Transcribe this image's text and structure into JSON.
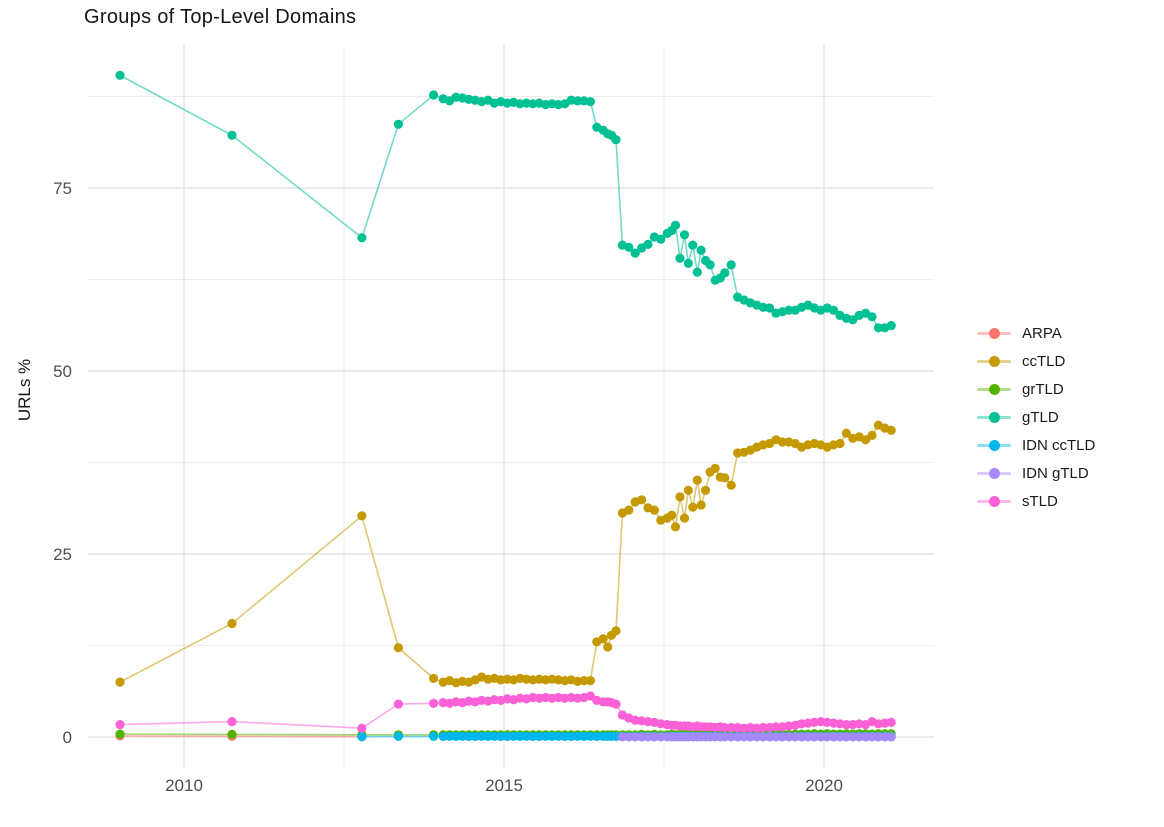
{
  "chart_data": {
    "type": "line",
    "title": "Groups of Top-Level Domains",
    "xlabel": "",
    "ylabel": "URLs %",
    "legend_position": "right",
    "grid": true,
    "xlim": [
      2008.5,
      2021.7
    ],
    "ylim": [
      -4.5,
      94.5
    ],
    "x_ticks": [
      2010,
      2015,
      2020
    ],
    "y_ticks": [
      0,
      25,
      50,
      75
    ],
    "x_minor": [
      2012.5,
      2017.5
    ],
    "y_minor": [
      12.5,
      37.5,
      62.5,
      87.5
    ],
    "x": [
      2009,
      2010.75,
      2012.78,
      2013.35,
      2013.9,
      2014.05,
      2014.15,
      2014.25,
      2014.35,
      2014.45,
      2014.55,
      2014.65,
      2014.75,
      2014.85,
      2014.95,
      2015.05,
      2015.15,
      2015.25,
      2015.35,
      2015.45,
      2015.55,
      2015.65,
      2015.75,
      2015.85,
      2015.95,
      2016.05,
      2016.15,
      2016.25,
      2016.35,
      2016.45,
      2016.55,
      2016.62,
      2016.68,
      2016.75,
      2016.85,
      2016.95,
      2017.05,
      2017.15,
      2017.25,
      2017.35,
      2017.45,
      2017.55,
      2017.62,
      2017.68,
      2017.75,
      2017.82,
      2017.88,
      2017.95,
      2018.02,
      2018.08,
      2018.15,
      2018.22,
      2018.3,
      2018.38,
      2018.45,
      2018.55,
      2018.65,
      2018.75,
      2018.85,
      2018.95,
      2019.05,
      2019.15,
      2019.25,
      2019.35,
      2019.45,
      2019.55,
      2019.65,
      2019.75,
      2019.85,
      2019.95,
      2020.05,
      2020.15,
      2020.25,
      2020.35,
      2020.45,
      2020.55,
      2020.65,
      2020.75,
      2020.85,
      2020.95,
      2021.05
    ],
    "series": [
      {
        "name": "ARPA",
        "color": "#F8766D",
        "values": [
          0.15,
          0.1,
          0.05,
          null,
          null,
          null,
          null,
          null,
          null,
          null,
          null,
          null,
          null,
          null,
          null,
          null,
          null,
          null,
          null,
          null,
          null,
          null,
          null,
          null,
          null,
          null,
          null,
          null,
          null,
          null,
          null,
          null,
          null,
          null,
          null,
          null,
          null,
          null,
          null,
          null,
          null,
          null,
          null,
          null,
          null,
          null,
          null,
          null,
          null,
          null,
          null,
          null,
          null,
          null,
          null,
          null,
          null,
          null,
          null,
          null,
          null,
          null,
          null,
          null,
          null,
          null,
          null,
          null,
          null,
          null,
          null,
          null,
          null,
          null,
          null,
          null,
          null,
          null,
          null,
          null,
          null
        ]
      },
      {
        "name": "ccTLD",
        "color": "#C49A00",
        "values": [
          7.5,
          15.5,
          30.2,
          12.2,
          8.0,
          7.5,
          7.7,
          7.4,
          7.6,
          7.5,
          7.8,
          8.2,
          7.9,
          8.0,
          7.8,
          7.9,
          7.8,
          8.0,
          7.9,
          7.8,
          7.9,
          7.8,
          7.9,
          7.8,
          7.7,
          7.8,
          7.6,
          7.7,
          7.7,
          13.0,
          13.4,
          12.3,
          13.9,
          14.5,
          30.6,
          31.0,
          32.1,
          32.4,
          31.3,
          31.0,
          29.6,
          29.9,
          30.3,
          28.7,
          32.8,
          29.9,
          33.7,
          31.4,
          35.1,
          31.7,
          33.7,
          36.2,
          36.7,
          35.5,
          35.4,
          34.4,
          38.8,
          38.9,
          39.2,
          39.6,
          39.9,
          40.1,
          40.6,
          40.3,
          40.3,
          40.1,
          39.6,
          39.9,
          40.1,
          39.9,
          39.6,
          39.9,
          40.1,
          41.5,
          40.8,
          41.0,
          40.6,
          41.2,
          42.6,
          42.2,
          41.9
        ]
      },
      {
        "name": "grTLD",
        "color": "#53B400",
        "values": [
          0.4,
          0.35,
          0.3,
          0.3,
          0.3,
          0.3,
          0.3,
          0.3,
          0.3,
          0.3,
          0.3,
          0.3,
          0.3,
          0.3,
          0.3,
          0.3,
          0.3,
          0.3,
          0.3,
          0.3,
          0.3,
          0.3,
          0.3,
          0.3,
          0.3,
          0.3,
          0.3,
          0.3,
          0.3,
          0.3,
          0.3,
          0.3,
          0.3,
          0.3,
          0.3,
          0.3,
          0.3,
          0.35,
          0.3,
          0.35,
          0.3,
          0.3,
          0.35,
          0.3,
          0.35,
          0.3,
          0.35,
          0.3,
          0.35,
          0.35,
          0.3,
          0.35,
          0.3,
          0.35,
          0.35,
          0.3,
          0.35,
          0.35,
          0.4,
          0.35,
          0.4,
          0.35,
          0.4,
          0.4,
          0.35,
          0.4,
          0.4,
          0.4,
          0.45,
          0.4,
          0.45,
          0.4,
          0.4,
          0.45,
          0.4,
          0.45,
          0.45,
          0.4,
          0.45,
          0.45,
          0.45
        ]
      },
      {
        "name": "gTLD",
        "color": "#00C094",
        "values": [
          90.4,
          82.2,
          68.2,
          83.7,
          87.7,
          87.2,
          86.9,
          87.4,
          87.3,
          87.1,
          87.0,
          86.8,
          87.0,
          86.6,
          86.8,
          86.6,
          86.7,
          86.5,
          86.6,
          86.5,
          86.6,
          86.4,
          86.5,
          86.4,
          86.5,
          87.0,
          86.9,
          86.9,
          86.8,
          83.3,
          82.9,
          82.4,
          82.2,
          81.6,
          67.2,
          66.9,
          66.1,
          66.8,
          67.3,
          68.3,
          68.0,
          68.8,
          69.2,
          69.9,
          65.4,
          68.6,
          64.7,
          67.2,
          63.5,
          66.5,
          65.1,
          64.5,
          62.4,
          62.7,
          63.4,
          64.5,
          60.1,
          59.7,
          59.3,
          59.0,
          58.7,
          58.6,
          57.9,
          58.1,
          58.3,
          58.3,
          58.7,
          59.0,
          58.6,
          58.3,
          58.6,
          58.3,
          57.6,
          57.2,
          57.0,
          57.6,
          57.9,
          57.4,
          55.9,
          55.9,
          56.2
        ]
      },
      {
        "name": "IDN ccTLD",
        "color": "#00B6EB",
        "values": [
          null,
          null,
          0.05,
          0.08,
          0.08,
          0.08,
          0.08,
          0.08,
          0.08,
          0.08,
          0.08,
          0.08,
          0.08,
          0.08,
          0.08,
          0.08,
          0.08,
          0.08,
          0.08,
          0.08,
          0.08,
          0.08,
          0.08,
          0.08,
          0.08,
          0.08,
          0.08,
          0.08,
          0.08,
          0.08,
          0.08,
          0.08,
          0.08,
          0.08,
          0.08,
          0.08,
          0.08,
          0.08,
          0.08,
          0.08,
          0.08,
          0.08,
          0.08,
          0.08,
          0.08,
          0.08,
          0.08,
          0.08,
          0.08,
          0.08,
          0.08,
          0.08,
          0.08,
          0.08,
          0.08,
          0.08,
          0.08,
          0.08,
          0.08,
          0.08,
          0.08,
          0.08,
          0.08,
          0.08,
          0.08,
          0.08,
          0.08,
          0.08,
          0.08,
          0.08,
          0.08,
          0.08,
          0.08,
          0.08,
          0.08,
          0.08,
          0.08,
          0.08,
          0.08,
          0.08,
          0.08
        ]
      },
      {
        "name": "IDN gTLD",
        "color": "#A58AFF",
        "values": [
          null,
          null,
          null,
          null,
          null,
          null,
          null,
          null,
          null,
          null,
          null,
          null,
          null,
          null,
          null,
          null,
          null,
          null,
          null,
          null,
          null,
          null,
          null,
          null,
          null,
          null,
          null,
          null,
          null,
          null,
          null,
          null,
          null,
          null,
          0.02,
          0.02,
          0.02,
          0.02,
          0.02,
          0.02,
          0.02,
          0.02,
          0.02,
          0.02,
          0.02,
          0.02,
          0.02,
          0.02,
          0.02,
          0.02,
          0.02,
          0.02,
          0.02,
          0.02,
          0.02,
          0.02,
          0.02,
          0.02,
          0.02,
          0.02,
          0.02,
          0.02,
          0.02,
          0.02,
          0.02,
          0.02,
          0.02,
          0.02,
          0.02,
          0.02,
          0.02,
          0.02,
          0.02,
          0.02,
          0.02,
          0.02,
          0.02,
          0.02,
          0.02,
          0.02,
          0.02
        ]
      },
      {
        "name": "sTLD",
        "color": "#FB61D7",
        "values": [
          1.7,
          2.1,
          1.2,
          4.5,
          4.6,
          4.7,
          4.6,
          4.8,
          4.7,
          4.9,
          4.8,
          5.0,
          4.9,
          5.1,
          5.0,
          5.2,
          5.1,
          5.3,
          5.2,
          5.4,
          5.3,
          5.4,
          5.3,
          5.4,
          5.3,
          5.4,
          5.3,
          5.4,
          5.6,
          5.0,
          4.8,
          4.8,
          4.7,
          4.5,
          3.0,
          2.6,
          2.3,
          2.2,
          2.1,
          2.0,
          1.8,
          1.7,
          1.6,
          1.6,
          1.5,
          1.5,
          1.5,
          1.4,
          1.5,
          1.4,
          1.4,
          1.4,
          1.3,
          1.4,
          1.3,
          1.3,
          1.3,
          1.2,
          1.3,
          1.2,
          1.3,
          1.3,
          1.4,
          1.4,
          1.5,
          1.6,
          1.8,
          1.9,
          2.0,
          2.1,
          2.0,
          1.9,
          1.8,
          1.7,
          1.7,
          1.8,
          1.7,
          2.1,
          1.8,
          1.9,
          2.0
        ]
      }
    ]
  }
}
